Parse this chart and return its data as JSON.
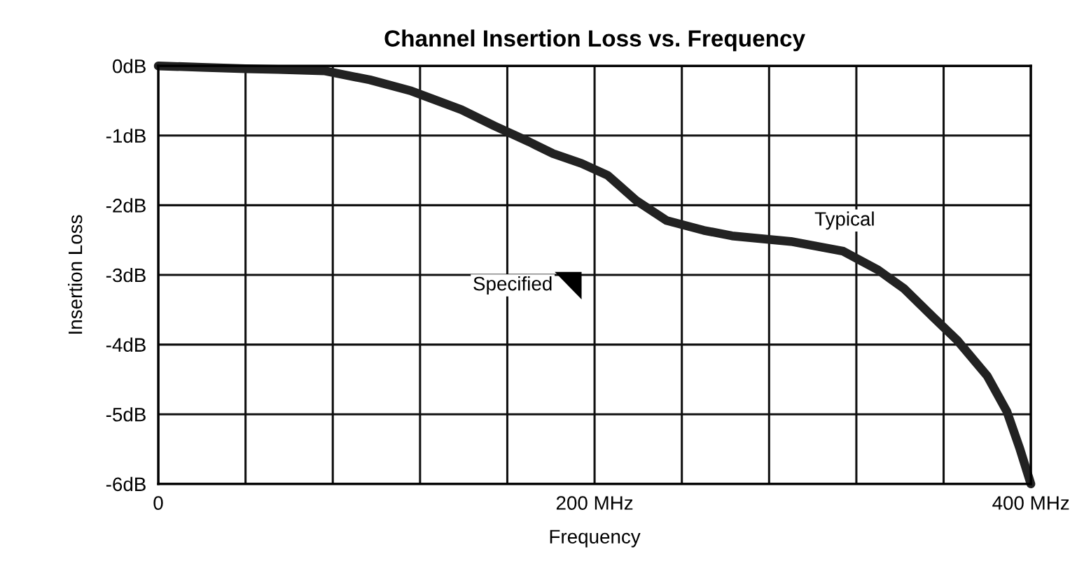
{
  "chart_data": {
    "type": "line",
    "title": "Channel Insertion Loss vs. Frequency",
    "xlabel": "Frequency",
    "ylabel": "Insertion Loss",
    "series": [
      {
        "name": "Typical",
        "color": "#222222",
        "x": [
          0,
          20,
          40,
          55,
          76,
          97,
          116,
          139,
          154,
          170,
          181,
          194,
          206,
          219,
          233,
          250,
          263,
          290,
          314,
          330,
          342,
          355,
          366,
          380,
          389,
          395,
          400
        ],
        "values": [
          0,
          -0.02,
          -0.04,
          -0.05,
          -0.07,
          -0.2,
          -0.36,
          -0.63,
          -0.86,
          -1.09,
          -1.26,
          -1.4,
          -1.57,
          -1.93,
          -2.22,
          -2.36,
          -2.44,
          -2.52,
          -2.66,
          -2.93,
          -3.2,
          -3.6,
          -3.93,
          -4.45,
          -4.96,
          -5.5,
          -6.0
        ]
      }
    ],
    "annotations": [
      "Specified"
    ],
    "xlim": [
      0,
      400
    ],
    "ylim": [
      -6,
      0
    ],
    "xticks": [
      {
        "value": 0,
        "label": "0"
      },
      {
        "value": 40,
        "label": null
      },
      {
        "value": 80,
        "label": null
      },
      {
        "value": 120,
        "label": null
      },
      {
        "value": 160,
        "label": null
      },
      {
        "value": 200,
        "label": "200 MHz"
      },
      {
        "value": 240,
        "label": null
      },
      {
        "value": 280,
        "label": null
      },
      {
        "value": 320,
        "label": null
      },
      {
        "value": 360,
        "label": null
      },
      {
        "value": 400,
        "label": "400 MHz"
      }
    ],
    "yticks": [
      {
        "value": 0,
        "label": "0dB"
      },
      {
        "value": -1,
        "label": "-1dB"
      },
      {
        "value": -2,
        "label": "-2dB"
      },
      {
        "value": -3,
        "label": "-3dB"
      },
      {
        "value": -4,
        "label": "-4dB"
      },
      {
        "value": -5,
        "label": "-5dB"
      },
      {
        "value": -6,
        "label": "-6dB"
      }
    ],
    "grid": true,
    "legend": false,
    "marker": "none",
    "line_style": "solid"
  }
}
